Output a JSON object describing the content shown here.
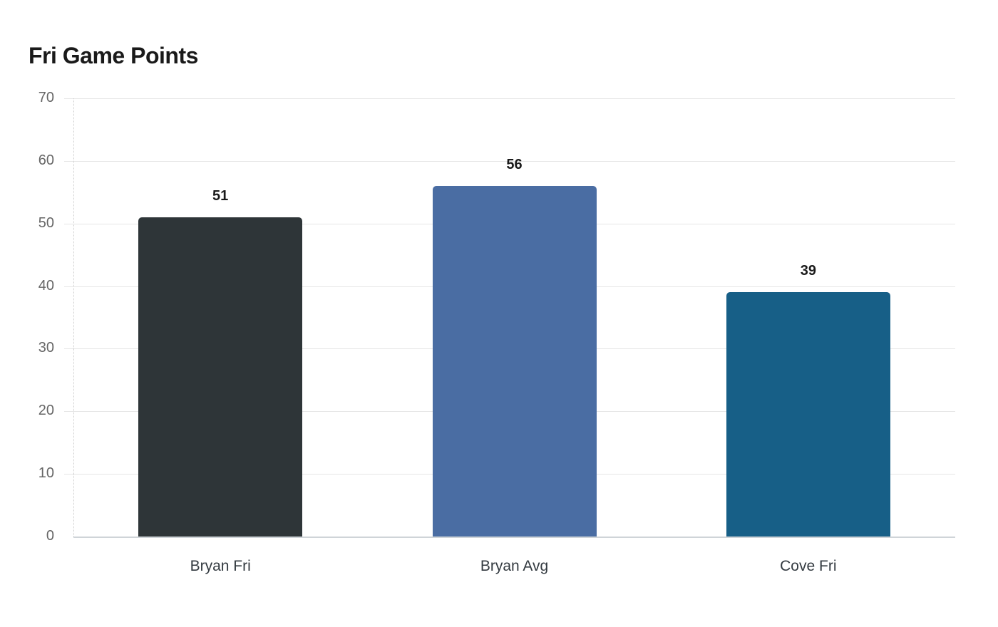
{
  "chart_data": {
    "type": "bar",
    "title": "Fri Game Points",
    "xlabel": "",
    "ylabel": "",
    "categories": [
      "Bryan Fri",
      "Bryan Avg",
      "Cove Fri"
    ],
    "values": [
      51,
      56,
      39
    ],
    "colors": [
      "#2e3538",
      "#4a6da3",
      "#175f87"
    ],
    "ylim": [
      0,
      70
    ],
    "yticks": [
      "0",
      "10",
      "20",
      "30",
      "40",
      "50",
      "60",
      "70"
    ],
    "grid": true,
    "legend": null,
    "data_labels": [
      "51",
      "56",
      "39"
    ]
  }
}
